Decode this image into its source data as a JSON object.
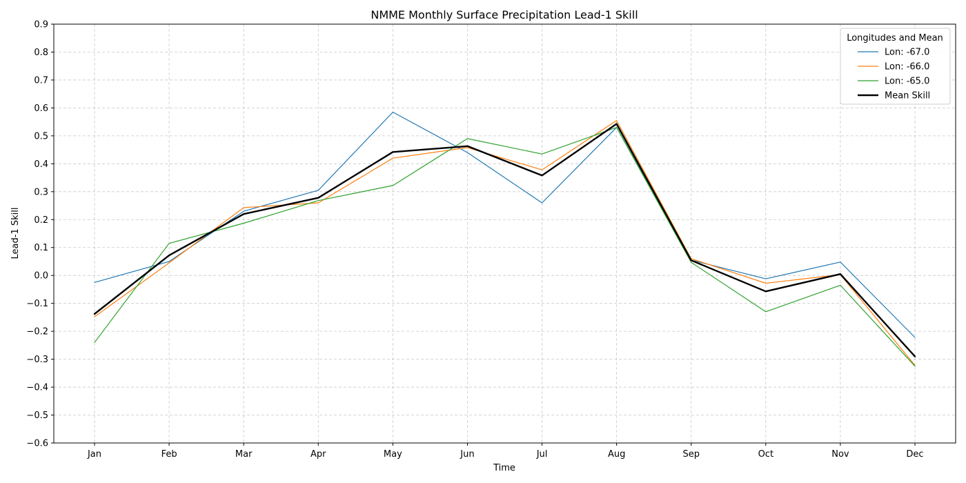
{
  "chart_data": {
    "type": "line",
    "title": "NMME Monthly Surface Precipitation Lead-1 Skill",
    "xlabel": "Time",
    "ylabel": "Lead-1 Skill",
    "categories": [
      "Jan",
      "Feb",
      "Mar",
      "Apr",
      "May",
      "Jun",
      "Jul",
      "Aug",
      "Sep",
      "Oct",
      "Nov",
      "Dec"
    ],
    "ylim": [
      -0.6,
      0.9
    ],
    "yticks": [
      -0.6,
      -0.5,
      -0.4,
      -0.3,
      -0.2,
      -0.1,
      0.0,
      0.1,
      0.2,
      0.3,
      0.4,
      0.5,
      0.6,
      0.7,
      0.8,
      0.9
    ],
    "grid": true,
    "legend": {
      "title": "Longitudes and Mean",
      "placement": "top-right"
    },
    "series": [
      {
        "name": "Lon: -67.0",
        "color": "#1f77b4",
        "values": [
          -0.025,
          0.05,
          0.23,
          0.305,
          0.585,
          0.44,
          0.26,
          0.53,
          0.055,
          -0.012,
          0.048,
          -0.222
        ]
      },
      {
        "name": "Lon: -66.0",
        "color": "#ff7f0e",
        "values": [
          -0.148,
          0.045,
          0.243,
          0.26,
          0.42,
          0.458,
          0.378,
          0.555,
          0.06,
          -0.028,
          0.003,
          -0.322
        ]
      },
      {
        "name": "Lon: -65.0",
        "color": "#2ca02c",
        "values": [
          -0.24,
          0.115,
          0.187,
          0.268,
          0.322,
          0.49,
          0.435,
          0.53,
          0.047,
          -0.13,
          -0.035,
          -0.325
        ]
      },
      {
        "name": "Mean Skill",
        "color": "#000000",
        "values": [
          -0.138,
          0.072,
          0.22,
          0.278,
          0.442,
          0.463,
          0.358,
          0.543,
          0.054,
          -0.057,
          0.005,
          -0.29
        ]
      }
    ]
  }
}
